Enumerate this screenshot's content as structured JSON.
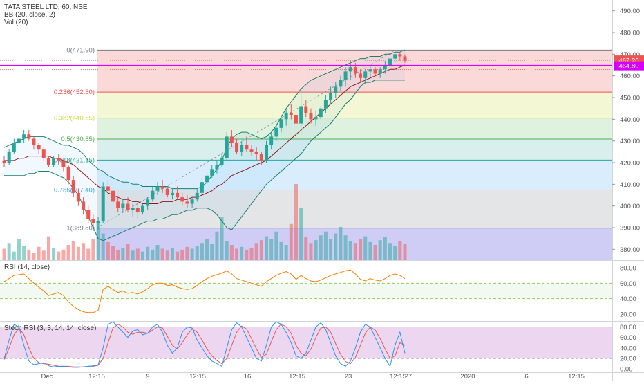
{
  "legend": {
    "title": "TATA STEEL LTD, 60, NSE",
    "bb": "BB (20, close, 2)",
    "vol": "Vol (20)",
    "rsi": "RSI (14, close)",
    "stoch": "Stoch RSI (3, 3, 14, 14, close)"
  },
  "colors": {
    "up": "#26a69a",
    "down": "#ef5350",
    "bb_basis": "#8b1a1a",
    "bb_band": "#1b7f6c",
    "rsi_line": "#f57c00",
    "stoch_k": "#2196f3",
    "stoch_d": "#ef5350",
    "hline": "#d500f9"
  },
  "chart_data": {
    "type": "candlestick",
    "symbol": "TATA STEEL LTD",
    "interval": "60",
    "exchange": "NSE",
    "price_axis": {
      "ylim": [
        375,
        495
      ],
      "ticks": [
        "380.00",
        "390.00",
        "400.00",
        "410.00",
        "420.00",
        "430.00",
        "440.00",
        "450.00",
        "460.00",
        "470.00",
        "480.00",
        "490.00"
      ]
    },
    "x_axis_labels": [
      "Dec",
      "12:15",
      "9",
      "12:15",
      "16",
      "12:15",
      "23",
      "12:15",
      "27",
      "2020",
      "6",
      "12:15"
    ],
    "price_labels": {
      "last": "467.20",
      "level": "464.80"
    },
    "fib_levels": [
      {
        "ratio": "0",
        "price": 471.9,
        "label": "0(471.90)",
        "color": "#787b86",
        "fill": "rgba(239,83,80,0.22)"
      },
      {
        "ratio": "0.236",
        "price": 452.5,
        "label": "0.236(452.50)",
        "color": "#ef5350",
        "fill": "rgba(205,220,57,0.22)"
      },
      {
        "ratio": "0.382",
        "price": 440.55,
        "label": "0.382(440.55)",
        "color": "#cddc39",
        "fill": "rgba(76,175,80,0.18)"
      },
      {
        "ratio": "0.5",
        "price": 430.85,
        "label": "0.5(430.85)",
        "color": "#4caf50",
        "fill": "rgba(38,166,154,0.18)"
      },
      {
        "ratio": "0.618",
        "price": 421.15,
        "label": "0.618(421.15)",
        "color": "#26a69a",
        "fill": "rgba(66,165,245,0.20)"
      },
      {
        "ratio": "0.786",
        "price": 407.4,
        "label": "0.786(407.40)",
        "color": "#42a5f5",
        "fill": "rgba(120,123,134,0.20)"
      },
      {
        "ratio": "1",
        "price": 389.8,
        "label": "1(389.80)",
        "color": "#787b86",
        "fill": "rgba(81,73,220,0.28)"
      }
    ],
    "candles": [
      [
        421,
        423,
        418,
        420
      ],
      [
        420,
        426,
        419,
        425
      ],
      [
        425,
        431,
        424,
        429
      ],
      [
        429,
        433,
        427,
        431
      ],
      [
        431,
        435,
        429,
        433
      ],
      [
        433,
        435,
        430,
        431
      ],
      [
        431,
        432,
        426,
        428
      ],
      [
        428,
        429,
        424,
        426
      ],
      [
        426,
        427,
        421,
        422
      ],
      [
        422,
        423,
        418,
        419
      ],
      [
        419,
        423,
        418,
        422
      ],
      [
        422,
        424,
        419,
        421
      ],
      [
        421,
        422,
        416,
        418
      ],
      [
        418,
        419,
        410,
        412
      ],
      [
        412,
        414,
        404,
        406
      ],
      [
        406,
        408,
        400,
        402
      ],
      [
        402,
        404,
        396,
        398
      ],
      [
        398,
        400,
        392,
        394
      ],
      [
        394,
        396,
        390,
        392
      ],
      [
        392,
        395,
        389,
        393
      ],
      [
        393,
        411,
        392,
        409
      ],
      [
        409,
        412,
        405,
        407
      ],
      [
        407,
        408,
        400,
        402
      ],
      [
        402,
        404,
        397,
        399
      ],
      [
        399,
        403,
        397,
        401
      ],
      [
        401,
        404,
        397,
        398
      ],
      [
        398,
        401,
        395,
        399
      ],
      [
        399,
        402,
        394,
        397
      ],
      [
        397,
        401,
        396,
        400
      ],
      [
        400,
        404,
        398,
        403
      ],
      [
        403,
        409,
        402,
        407
      ],
      [
        407,
        411,
        405,
        409
      ],
      [
        409,
        412,
        406,
        408
      ],
      [
        408,
        409,
        404,
        405
      ],
      [
        405,
        408,
        403,
        406
      ],
      [
        406,
        409,
        403,
        404
      ],
      [
        404,
        406,
        400,
        402
      ],
      [
        402,
        405,
        399,
        401
      ],
      [
        401,
        404,
        399,
        403
      ],
      [
        403,
        408,
        402,
        406
      ],
      [
        406,
        413,
        405,
        411
      ],
      [
        411,
        416,
        410,
        414
      ],
      [
        414,
        419,
        413,
        417
      ],
      [
        417,
        421,
        415,
        419
      ],
      [
        419,
        424,
        418,
        422
      ],
      [
        422,
        434,
        421,
        432
      ],
      [
        432,
        435,
        427,
        429
      ],
      [
        429,
        431,
        424,
        425
      ],
      [
        425,
        430,
        423,
        428
      ],
      [
        428,
        432,
        425,
        426
      ],
      [
        426,
        428,
        423,
        425
      ],
      [
        425,
        427,
        421,
        424
      ],
      [
        424,
        425,
        419,
        421
      ],
      [
        421,
        430,
        420,
        428
      ],
      [
        428,
        434,
        426,
        432
      ],
      [
        432,
        438,
        430,
        436
      ],
      [
        436,
        442,
        434,
        440
      ],
      [
        440,
        445,
        437,
        443
      ],
      [
        443,
        447,
        440,
        442
      ],
      [
        442,
        443,
        436,
        438
      ],
      [
        438,
        452,
        433,
        446
      ],
      [
        446,
        449,
        441,
        443
      ],
      [
        443,
        445,
        438,
        440
      ],
      [
        440,
        444,
        437,
        441
      ],
      [
        441,
        446,
        440,
        445
      ],
      [
        445,
        451,
        443,
        449
      ],
      [
        449,
        455,
        447,
        452
      ],
      [
        452,
        457,
        450,
        455
      ],
      [
        455,
        460,
        453,
        458
      ],
      [
        458,
        464,
        455,
        462
      ],
      [
        462,
        467,
        458,
        464
      ],
      [
        464,
        466,
        459,
        461
      ],
      [
        461,
        463,
        457,
        459
      ],
      [
        459,
        463,
        456,
        462
      ],
      [
        462,
        465,
        459,
        463
      ],
      [
        463,
        464,
        460,
        461
      ],
      [
        461,
        464,
        459,
        463
      ],
      [
        463,
        467,
        461,
        465
      ],
      [
        465,
        470,
        463,
        468
      ],
      [
        468,
        472,
        466,
        470
      ],
      [
        470,
        471,
        467,
        469
      ],
      [
        469,
        470,
        466,
        467
      ]
    ],
    "volume": [
      12,
      18,
      9,
      22,
      15,
      11,
      8,
      14,
      10,
      25,
      13,
      9,
      11,
      16,
      20,
      14,
      18,
      12,
      22,
      40,
      28,
      19,
      15,
      11,
      13,
      17,
      10,
      12,
      9,
      14,
      11,
      16,
      12,
      10,
      13,
      9,
      11,
      14,
      12,
      15,
      18,
      22,
      17,
      30,
      45,
      20,
      16,
      12,
      14,
      11,
      13,
      18,
      21,
      25,
      22,
      30,
      19,
      16,
      38,
      80,
      55,
      24,
      18,
      21,
      26,
      30,
      22,
      28,
      35,
      26,
      20,
      18,
      22,
      25,
      19,
      16,
      21,
      24,
      18,
      15,
      20,
      17
    ],
    "bb_upper": [
      427,
      428,
      429,
      430,
      431,
      432,
      432,
      432,
      432,
      431,
      430,
      429,
      428,
      428,
      427,
      426,
      424,
      421,
      419,
      417,
      416,
      414,
      413,
      412,
      411,
      411,
      410,
      410,
      409,
      409,
      409,
      409,
      409,
      409,
      408,
      408,
      408,
      408,
      408,
      408,
      409,
      411,
      414,
      417,
      421,
      427,
      431,
      433,
      434,
      434,
      433,
      432,
      431,
      432,
      434,
      437,
      441,
      445,
      448,
      451,
      454,
      456,
      458,
      459,
      460,
      461,
      462,
      463,
      464,
      465,
      466,
      467,
      468,
      468,
      469,
      469,
      469,
      470,
      470,
      471,
      471,
      472
    ],
    "bb_basis": [
      421,
      421,
      421,
      422,
      422,
      423,
      423,
      423,
      423,
      423,
      422,
      422,
      421,
      420,
      419,
      417,
      415,
      413,
      411,
      409,
      408,
      406,
      405,
      404,
      403,
      403,
      402,
      402,
      401,
      401,
      401,
      401,
      402,
      402,
      402,
      403,
      403,
      403,
      404,
      404,
      405,
      406,
      407,
      409,
      410,
      412,
      414,
      415,
      416,
      417,
      418,
      419,
      420,
      421,
      423,
      425,
      427,
      429,
      431,
      433,
      435,
      437,
      439,
      441,
      443,
      445,
      447,
      449,
      451,
      453,
      455,
      456,
      457,
      458,
      459,
      460,
      461,
      462,
      463,
      463,
      464,
      465
    ],
    "bb_lower": [
      414,
      414,
      414,
      414,
      414,
      415,
      415,
      416,
      416,
      416,
      415,
      414,
      413,
      411,
      408,
      405,
      400,
      395,
      390,
      385,
      384,
      385,
      386,
      387,
      388,
      389,
      390,
      391,
      392,
      393,
      393,
      394,
      394,
      395,
      396,
      396,
      397,
      398,
      398,
      399,
      399,
      399,
      398,
      396,
      393,
      390,
      389,
      392,
      395,
      398,
      401,
      404,
      407,
      410,
      412,
      414,
      416,
      418,
      420,
      422,
      424,
      427,
      430,
      432,
      434,
      436,
      438,
      441,
      444,
      447,
      449,
      452,
      455,
      457,
      457,
      458,
      458,
      458,
      458,
      458,
      458,
      458
    ],
    "rsi_axis": {
      "ylim": [
        12,
        88
      ],
      "ticks": [
        "20.00",
        "40.00",
        "60.00",
        "80.00"
      ],
      "band": [
        40,
        60
      ]
    },
    "rsi": [
      62,
      66,
      70,
      71,
      72,
      66,
      60,
      55,
      50,
      44,
      46,
      48,
      44,
      36,
      30,
      26,
      23,
      22,
      22,
      25,
      52,
      56,
      52,
      48,
      50,
      47,
      48,
      46,
      49,
      53,
      58,
      60,
      60,
      57,
      58,
      55,
      53,
      52,
      53,
      57,
      62,
      66,
      69,
      71,
      73,
      76,
      72,
      66,
      64,
      62,
      60,
      58,
      56,
      62,
      66,
      70,
      73,
      75,
      72,
      65,
      70,
      66,
      63,
      62,
      64,
      67,
      70,
      72,
      74,
      76,
      77,
      72,
      65,
      63,
      66,
      64,
      63,
      66,
      70,
      72,
      70,
      66
    ],
    "stoch_axis": {
      "ylim": [
        -5,
        90
      ],
      "ticks": [
        "0.00",
        "20.00",
        "40.00",
        "60.00",
        "80.00"
      ],
      "band": [
        20,
        80
      ]
    },
    "stoch_k": [
      20,
      55,
      85,
      80,
      45,
      15,
      8,
      10,
      12,
      6,
      4,
      5,
      5,
      4,
      3,
      3,
      4,
      5,
      6,
      8,
      40,
      85,
      90,
      80,
      70,
      60,
      72,
      75,
      65,
      68,
      80,
      85,
      70,
      45,
      30,
      40,
      70,
      80,
      78,
      55,
      40,
      25,
      15,
      10,
      5,
      40,
      75,
      88,
      80,
      60,
      40,
      20,
      15,
      45,
      80,
      90,
      85,
      70,
      50,
      25,
      20,
      30,
      55,
      80,
      88,
      75,
      50,
      25,
      10,
      5,
      15,
      40,
      70,
      85,
      80,
      60,
      40,
      20,
      5,
      45,
      70,
      30
    ],
    "stoch_d": [
      18,
      40,
      65,
      78,
      65,
      40,
      20,
      12,
      10,
      9,
      7,
      5,
      5,
      5,
      4,
      4,
      4,
      5,
      5,
      7,
      20,
      50,
      78,
      85,
      80,
      70,
      66,
      70,
      70,
      68,
      74,
      80,
      78,
      62,
      45,
      38,
      50,
      65,
      76,
      70,
      55,
      38,
      25,
      16,
      10,
      20,
      45,
      70,
      82,
      76,
      58,
      38,
      22,
      28,
      52,
      75,
      86,
      80,
      68,
      45,
      30,
      25,
      38,
      60,
      78,
      80,
      70,
      48,
      28,
      14,
      10,
      22,
      45,
      68,
      80,
      74,
      58,
      38,
      20,
      25,
      50,
      45
    ]
  }
}
